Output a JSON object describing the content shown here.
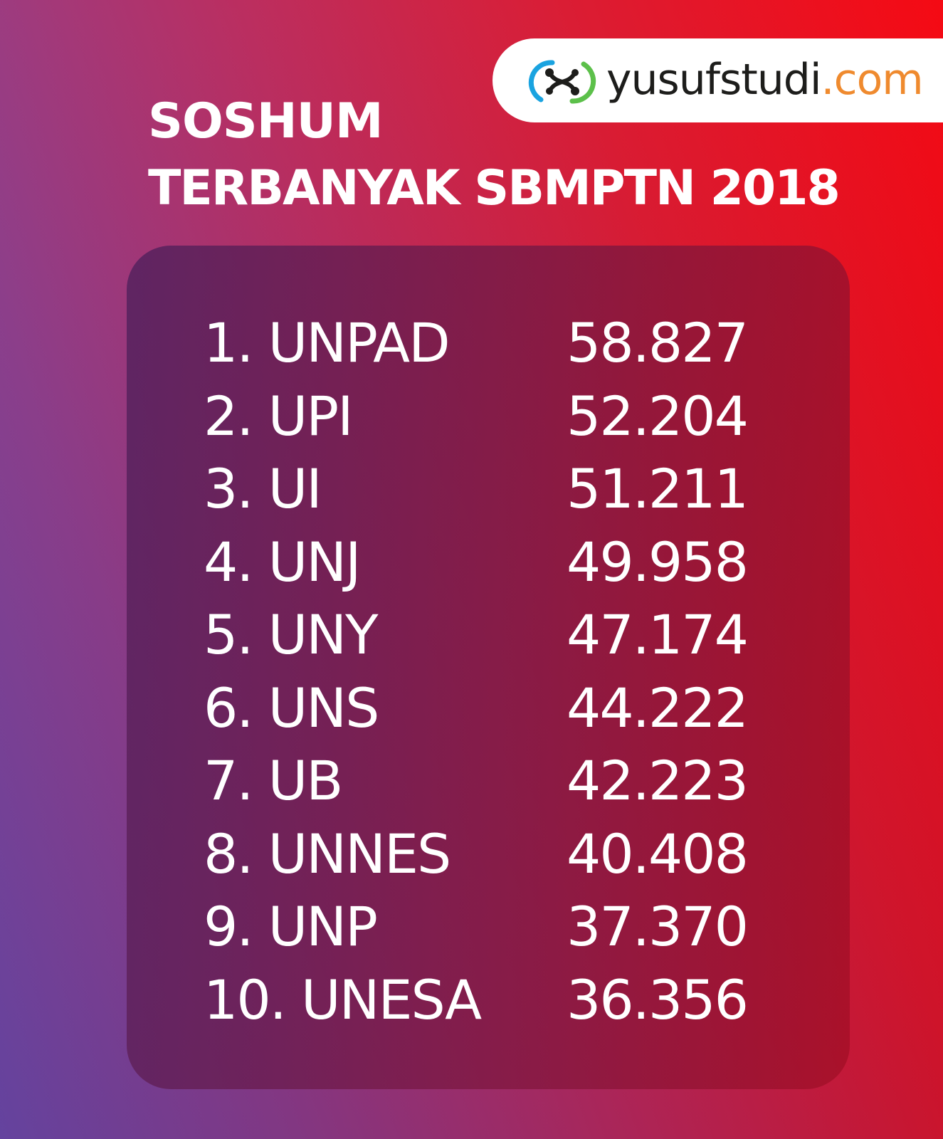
{
  "brand": {
    "logo_icon": "yusufstudi-logo-icon",
    "name": "yusufstudi",
    "tld": ".com",
    "colors": {
      "name": "#1d1d1b",
      "tld": "#ef8a2e",
      "icon_blue": "#1aa3e0",
      "icon_green": "#5cc04a"
    }
  },
  "title": {
    "line1": "SOSHUM",
    "line2": "TERBANYAK SBMPTN 2018"
  },
  "rankings": [
    {
      "label": "1. UNPAD",
      "value": "58.827"
    },
    {
      "label": "2. UPI",
      "value": "52.204"
    },
    {
      "label": "3. UI",
      "value": "51.211"
    },
    {
      "label": "4. UNJ",
      "value": "49.958"
    },
    {
      "label": "5. UNY",
      "value": "47.174"
    },
    {
      "label": "6. UNS",
      "value": "44.222"
    },
    {
      "label": "7. UB",
      "value": "42.223"
    },
    {
      "label": "8. UNNES",
      "value": "40.408"
    },
    {
      "label": "9. UNP",
      "value": "37.370"
    },
    {
      "label": "10. UNESA",
      "value": "36.356"
    }
  ],
  "colors": {
    "gradient_left": "#6a47a8",
    "gradient_mid": "#b8265a",
    "gradient_right": "#f5000a",
    "text": "#ffffff"
  }
}
